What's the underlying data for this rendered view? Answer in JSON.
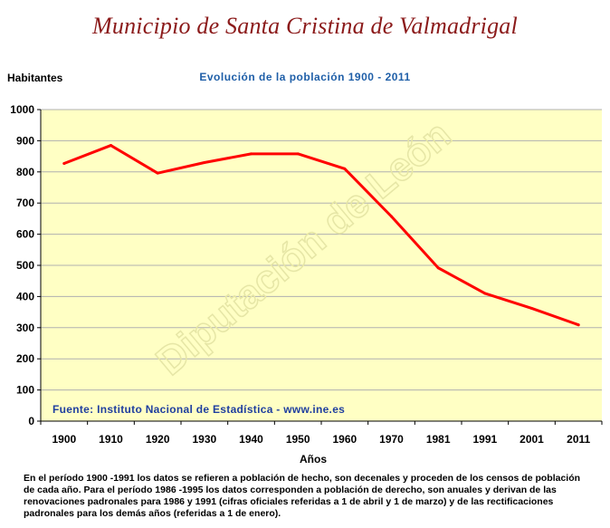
{
  "page": {
    "title": "Municipio de Santa Cristina de Valmadrigal",
    "footnote": "En el período 1900 -1991 los datos se refieren a población de hecho, son decenales y proceden de los censos de población de cada año. Para el período 1986 -1995 los datos corresponden a población de derecho, son anuales y derivan de las renovaciones padronales para 1986 y 1991 (cifras oficiales referidas a 1 de abril y 1 de marzo) y de las rectificaciones padronales para los demás años (referidas a 1 de enero)."
  },
  "chart_data": {
    "type": "line",
    "title": "Evolución de la población 1900 - 2011",
    "ylabel": "Habitantes",
    "xlabel": "Años",
    "categories": [
      "1900",
      "1910",
      "1920",
      "1930",
      "1940",
      "1950",
      "1960",
      "1970",
      "1981",
      "1991",
      "2001",
      "2011"
    ],
    "series": [
      {
        "values": [
          827,
          885,
          796,
          830,
          858,
          858,
          810,
          657,
          492,
          410,
          362,
          309
        ]
      }
    ],
    "ylim": [
      0,
      1000
    ],
    "yticks": [
      0,
      100,
      200,
      300,
      400,
      500,
      600,
      700,
      800,
      900,
      1000
    ],
    "grid": true,
    "annotation": "Fuente: Instituto Nacional de Estadística - www.ine.es",
    "watermark": "Diputación de León",
    "colors": {
      "plot_background": "#ffffc4",
      "grid": "#b0b0b0",
      "line": "#ff0000",
      "annotation": "#1f3f9f",
      "title": "#8b1a1a",
      "subtitle": "#1f5fa8"
    }
  }
}
